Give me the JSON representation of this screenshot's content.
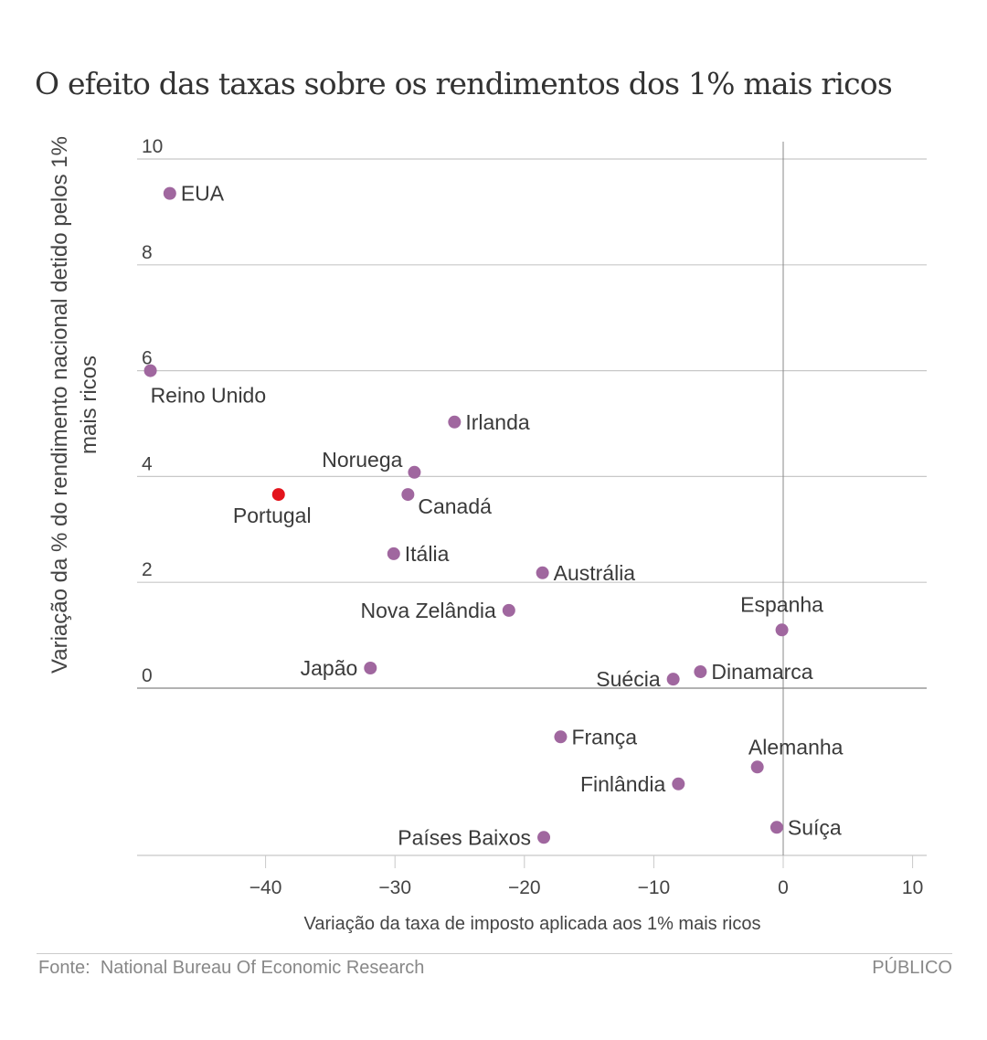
{
  "title": "O efeito das taxas sobre os rendimentos dos 1% mais ricos",
  "footer": {
    "source": "Fonte:  National Bureau Of Economic Research",
    "brand": "PÚBLICO"
  },
  "colors": {
    "point": "#a0679f",
    "highlight": "#e3141c",
    "grid": "#c8c8c8",
    "text": "#444444"
  },
  "chart_data": {
    "type": "scatter",
    "title": "O efeito das taxas sobre os rendimentos dos 1% mais ricos",
    "xlabel": "Variação da taxa de imposto aplicada aos 1% mais ricos",
    "ylabel": "Variação da % do rendimento nacional detido pelos 1% mais ricos",
    "xlim": [
      -50,
      11
    ],
    "ylim": [
      -3.2,
      10.3
    ],
    "xticks": [
      -40,
      -30,
      -20,
      -10,
      0,
      10
    ],
    "xtick_labels": [
      "−40",
      "−30",
      "−20",
      "−10",
      "0",
      "10"
    ],
    "yticks": [
      0,
      2,
      4,
      6,
      8,
      10
    ],
    "ytick_labels": [
      "0",
      "2",
      "4",
      "6",
      "8",
      "10"
    ],
    "grid": true,
    "points": [
      {
        "label": "EUA",
        "x": -47.4,
        "y": 9.35,
        "highlight": false,
        "label_pos": "right"
      },
      {
        "label": "Reino Unido",
        "x": -48.9,
        "y": 6.0,
        "highlight": false,
        "label_pos": "below-right"
      },
      {
        "label": "Irlanda",
        "x": -25.4,
        "y": 5.03,
        "highlight": false,
        "label_pos": "right"
      },
      {
        "label": "Noruega",
        "x": -28.5,
        "y": 4.08,
        "highlight": false,
        "label_pos": "above-left"
      },
      {
        "label": "Portugal",
        "x": -39.0,
        "y": 3.66,
        "highlight": true,
        "label_pos": "below"
      },
      {
        "label": "Canadá",
        "x": -29.0,
        "y": 3.66,
        "highlight": false,
        "label_pos": "below-right"
      },
      {
        "label": "Itália",
        "x": -30.1,
        "y": 2.54,
        "highlight": false,
        "label_pos": "right"
      },
      {
        "label": "Austrália",
        "x": -18.6,
        "y": 2.18,
        "highlight": false,
        "label_pos": "right"
      },
      {
        "label": "Nova Zelândia",
        "x": -21.2,
        "y": 1.47,
        "highlight": false,
        "label_pos": "left"
      },
      {
        "label": "Espanha",
        "x": -0.1,
        "y": 1.1,
        "highlight": false,
        "label_pos": "above"
      },
      {
        "label": "Japão",
        "x": -31.9,
        "y": 0.38,
        "highlight": false,
        "label_pos": "left"
      },
      {
        "label": "Dinamarca",
        "x": -6.4,
        "y": 0.31,
        "highlight": false,
        "label_pos": "right"
      },
      {
        "label": "Suécia",
        "x": -8.5,
        "y": 0.17,
        "highlight": false,
        "label_pos": "left"
      },
      {
        "label": "França",
        "x": -17.2,
        "y": -0.92,
        "highlight": false,
        "label_pos": "right"
      },
      {
        "label": "Alemanha",
        "x": -2.0,
        "y": -1.49,
        "highlight": false,
        "label_pos": "above"
      },
      {
        "label": "Finlândia",
        "x": -8.1,
        "y": -1.81,
        "highlight": false,
        "label_pos": "left"
      },
      {
        "label": "Suíça",
        "x": -0.5,
        "y": -2.63,
        "highlight": false,
        "label_pos": "right"
      },
      {
        "label": "Países Baixos",
        "x": -18.5,
        "y": -2.82,
        "highlight": false,
        "label_pos": "left"
      }
    ]
  }
}
